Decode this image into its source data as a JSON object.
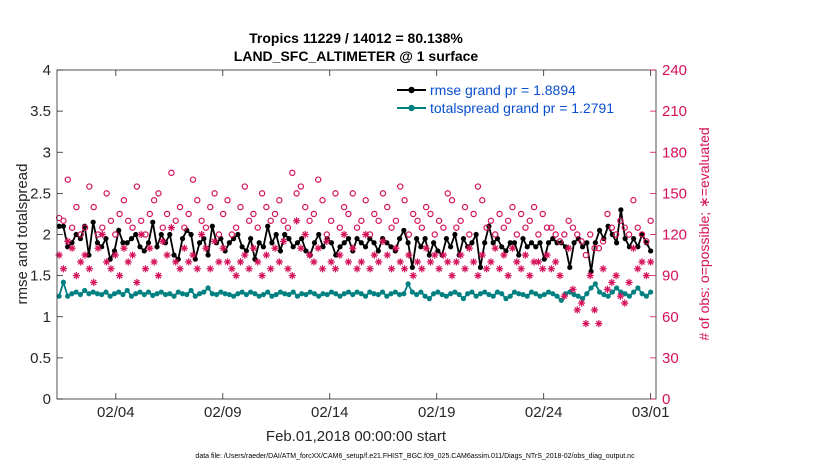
{
  "chart_data": {
    "type": "line",
    "title_line1": "Tropics 11229 / 14012 = 80.138%",
    "title_line2": "LAND_SFC_ALTIMETER @ 1 surface",
    "xlabel": "Feb.01,2018 00:00:00 start",
    "ylabel_left": "rmse and totalspread",
    "ylabel_right": "# of obs: o=possible; ∗=evaluated",
    "xlim": [
      1,
      29
    ],
    "ylim_left": [
      0,
      4
    ],
    "ylim_right": [
      0,
      240
    ],
    "x_ticks": [
      {
        "value": 3.75,
        "label": "02/04"
      },
      {
        "value": 8.75,
        "label": "02/09"
      },
      {
        "value": 13.75,
        "label": "02/14"
      },
      {
        "value": 18.75,
        "label": "02/19"
      },
      {
        "value": 23.75,
        "label": "02/24"
      },
      {
        "value": 28.75,
        "label": "03/01"
      }
    ],
    "y_ticks_left": [
      "0",
      "0.5",
      "1",
      "1.5",
      "2",
      "2.5",
      "3",
      "3.5",
      "4"
    ],
    "y_ticks_right": [
      "0",
      "30",
      "60",
      "90",
      "120",
      "150",
      "180",
      "210",
      "240"
    ],
    "series": [
      {
        "name": "rmse",
        "legend": "rmse grand pr = 1.8894",
        "color": "#000000",
        "axis": "left",
        "values": [
          2.1,
          2.1,
          1.85,
          1.9,
          2.0,
          1.95,
          2.1,
          1.75,
          2.15,
          1.9,
          1.85,
          1.95,
          1.7,
          1.8,
          2.05,
          1.9,
          1.9,
          1.95,
          2.0,
          1.85,
          1.8,
          1.9,
          2.15,
          1.85,
          2.0,
          1.9,
          2.0,
          1.75,
          1.7,
          1.95,
          2.05,
          2.0,
          1.7,
          1.9,
          1.95,
          1.75,
          2.1,
          1.9,
          1.95,
          1.8,
          1.9,
          1.95,
          2.0,
          1.85,
          1.8,
          1.95,
          1.7,
          1.9,
          1.85,
          2.1,
          1.9,
          2.0,
          1.8,
          2.0,
          1.95,
          1.85,
          1.9,
          1.95,
          1.8,
          1.75,
          1.9,
          2.0,
          1.85,
          1.95,
          1.9,
          1.75,
          1.85,
          1.9,
          1.95,
          1.8,
          1.95,
          1.9,
          1.85,
          1.95,
          1.9,
          1.8,
          1.95,
          1.9,
          1.85,
          1.8,
          1.95,
          2.05,
          1.9,
          1.6,
          1.95,
          1.85,
          1.95,
          1.75,
          1.9,
          1.8,
          1.75,
          1.95,
          1.85,
          2.0,
          1.75,
          1.95,
          1.85,
          1.9,
          2.0,
          1.6,
          1.9,
          2.1,
          1.9,
          1.95,
          1.85,
          1.8,
          1.9,
          1.9,
          1.75,
          1.95,
          1.85,
          1.9,
          1.85,
          1.9,
          1.7,
          1.9,
          1.95,
          1.9,
          1.9,
          1.85,
          1.6,
          1.9,
          1.95,
          1.85,
          1.9,
          1.55,
          1.9,
          2.05,
          1.95,
          2.1,
          2.0,
          1.9,
          2.3,
          1.95,
          1.85,
          1.95,
          1.85,
          2.0,
          1.9,
          1.8
        ],
        "markers": "filled-circle"
      },
      {
        "name": "totalspread",
        "legend": "totalspread grand pr = 1.2791",
        "color": "#008080",
        "axis": "left",
        "values": [
          1.25,
          1.42,
          1.25,
          1.28,
          1.3,
          1.27,
          1.32,
          1.28,
          1.3,
          1.28,
          1.27,
          1.3,
          1.25,
          1.28,
          1.3,
          1.27,
          1.32,
          1.25,
          1.28,
          1.3,
          1.27,
          1.3,
          1.26,
          1.28,
          1.3,
          1.27,
          1.28,
          1.25,
          1.3,
          1.28,
          1.27,
          1.32,
          1.25,
          1.28,
          1.3,
          1.35,
          1.28,
          1.27,
          1.3,
          1.28,
          1.27,
          1.25,
          1.28,
          1.3,
          1.27,
          1.3,
          1.28,
          1.25,
          1.27,
          1.3,
          1.25,
          1.27,
          1.3,
          1.28,
          1.27,
          1.3,
          1.25,
          1.28,
          1.27,
          1.3,
          1.28,
          1.25,
          1.28,
          1.27,
          1.3,
          1.28,
          1.25,
          1.28,
          1.3,
          1.27,
          1.3,
          1.28,
          1.25,
          1.3,
          1.28,
          1.27,
          1.3,
          1.25,
          1.28,
          1.3,
          1.27,
          1.28,
          1.4,
          1.3,
          1.27,
          1.3,
          1.25,
          1.22,
          1.28,
          1.3,
          1.27,
          1.25,
          1.28,
          1.3,
          1.27,
          1.22,
          1.28,
          1.3,
          1.25,
          1.28,
          1.3,
          1.27,
          1.25,
          1.3,
          1.28,
          1.22,
          1.25,
          1.3,
          1.28,
          1.27,
          1.25,
          1.3,
          1.28,
          1.25,
          1.27,
          1.3,
          1.28,
          1.25,
          1.2,
          1.28,
          1.3,
          1.27,
          1.25,
          1.22,
          1.28,
          1.35,
          1.4,
          1.3,
          1.27,
          1.25,
          1.3,
          1.35,
          1.3,
          1.28,
          1.25,
          1.3,
          1.35,
          1.28,
          1.25,
          1.3
        ],
        "markers": "filled-circle"
      },
      {
        "name": "obs possible",
        "color": "#d5105a",
        "axis": "right",
        "marker": "open-circle",
        "values": [
          132,
          130,
          160,
          125,
          140,
          120,
          125,
          155,
          140,
          120,
          125,
          150,
          130,
          120,
          135,
          145,
          130,
          125,
          155,
          130,
          120,
          135,
          145,
          150,
          125,
          135,
          165,
          130,
          140,
          125,
          135,
          160,
          145,
          130,
          125,
          140,
          150,
          120,
          135,
          145,
          120,
          125,
          140,
          155,
          130,
          135,
          125,
          150,
          140,
          130,
          135,
          145,
          130,
          125,
          165,
          150,
          155,
          140,
          130,
          135,
          160,
          145,
          120,
          130,
          150,
          125,
          140,
          135,
          150,
          125,
          130,
          145,
          120,
          135,
          130,
          150,
          140,
          125,
          130,
          155,
          145,
          120,
          135,
          130,
          125,
          140,
          135,
          120,
          130,
          125,
          150,
          145,
          125,
          130,
          140,
          120,
          135,
          155,
          145,
          125,
          130,
          120,
          135,
          125,
          130,
          140,
          120,
          135,
          125,
          130,
          140,
          120,
          135,
          125,
          125,
          120,
          115,
          120,
          130,
          125,
          120,
          115,
          105,
          120,
          110,
          110,
          115,
          135,
          125,
          120,
          130,
          125,
          120,
          145,
          125,
          120,
          115,
          130
        ]
      },
      {
        "name": "obs evaluated",
        "color": "#d5105a",
        "axis": "right",
        "marker": "asterisk",
        "values": [
          105,
          95,
          115,
          110,
          90,
          100,
          105,
          95,
          85,
          110,
          120,
          100,
          95,
          105,
          90,
          110,
          100,
          105,
          85,
          120,
          95,
          110,
          100,
          90,
          115,
          105,
          125,
          100,
          95,
          110,
          100,
          105,
          95,
          120,
          110,
          95,
          115,
          100,
          110,
          100,
          95,
          90,
          100,
          105,
          95,
          110,
          100,
          90,
          105,
          95,
          110,
          100,
          115,
          95,
          90,
          130,
          110,
          120,
          105,
          100,
          110,
          95,
          115,
          100,
          95,
          105,
          120,
          100,
          110,
          95,
          100,
          120,
          95,
          105,
          100,
          115,
          105,
          95,
          110,
          100,
          95,
          105,
          90,
          100,
          95,
          110,
          100,
          105,
          95,
          105,
          100,
          90,
          100,
          105,
          95,
          110,
          100,
          90,
          105,
          95,
          100,
          110,
          95,
          105,
          90,
          110,
          100,
          95,
          105,
          90,
          100,
          100,
          95,
          105,
          95,
          100,
          90,
          75,
          110,
          80,
          65,
          70,
          55,
          90,
          65,
          55,
          95,
          80,
          85,
          90,
          75,
          70,
          85,
          110,
          95,
          100,
          90,
          100
        ]
      }
    ]
  },
  "footer": "data file: /Users/raeder/DAI/ATM_forcXX/CAM6_setup/f.e21.FHIST_BGC.f09_025.CAM6assim.011/Diags_NTrS_2018-02/obs_diag_output.nc"
}
